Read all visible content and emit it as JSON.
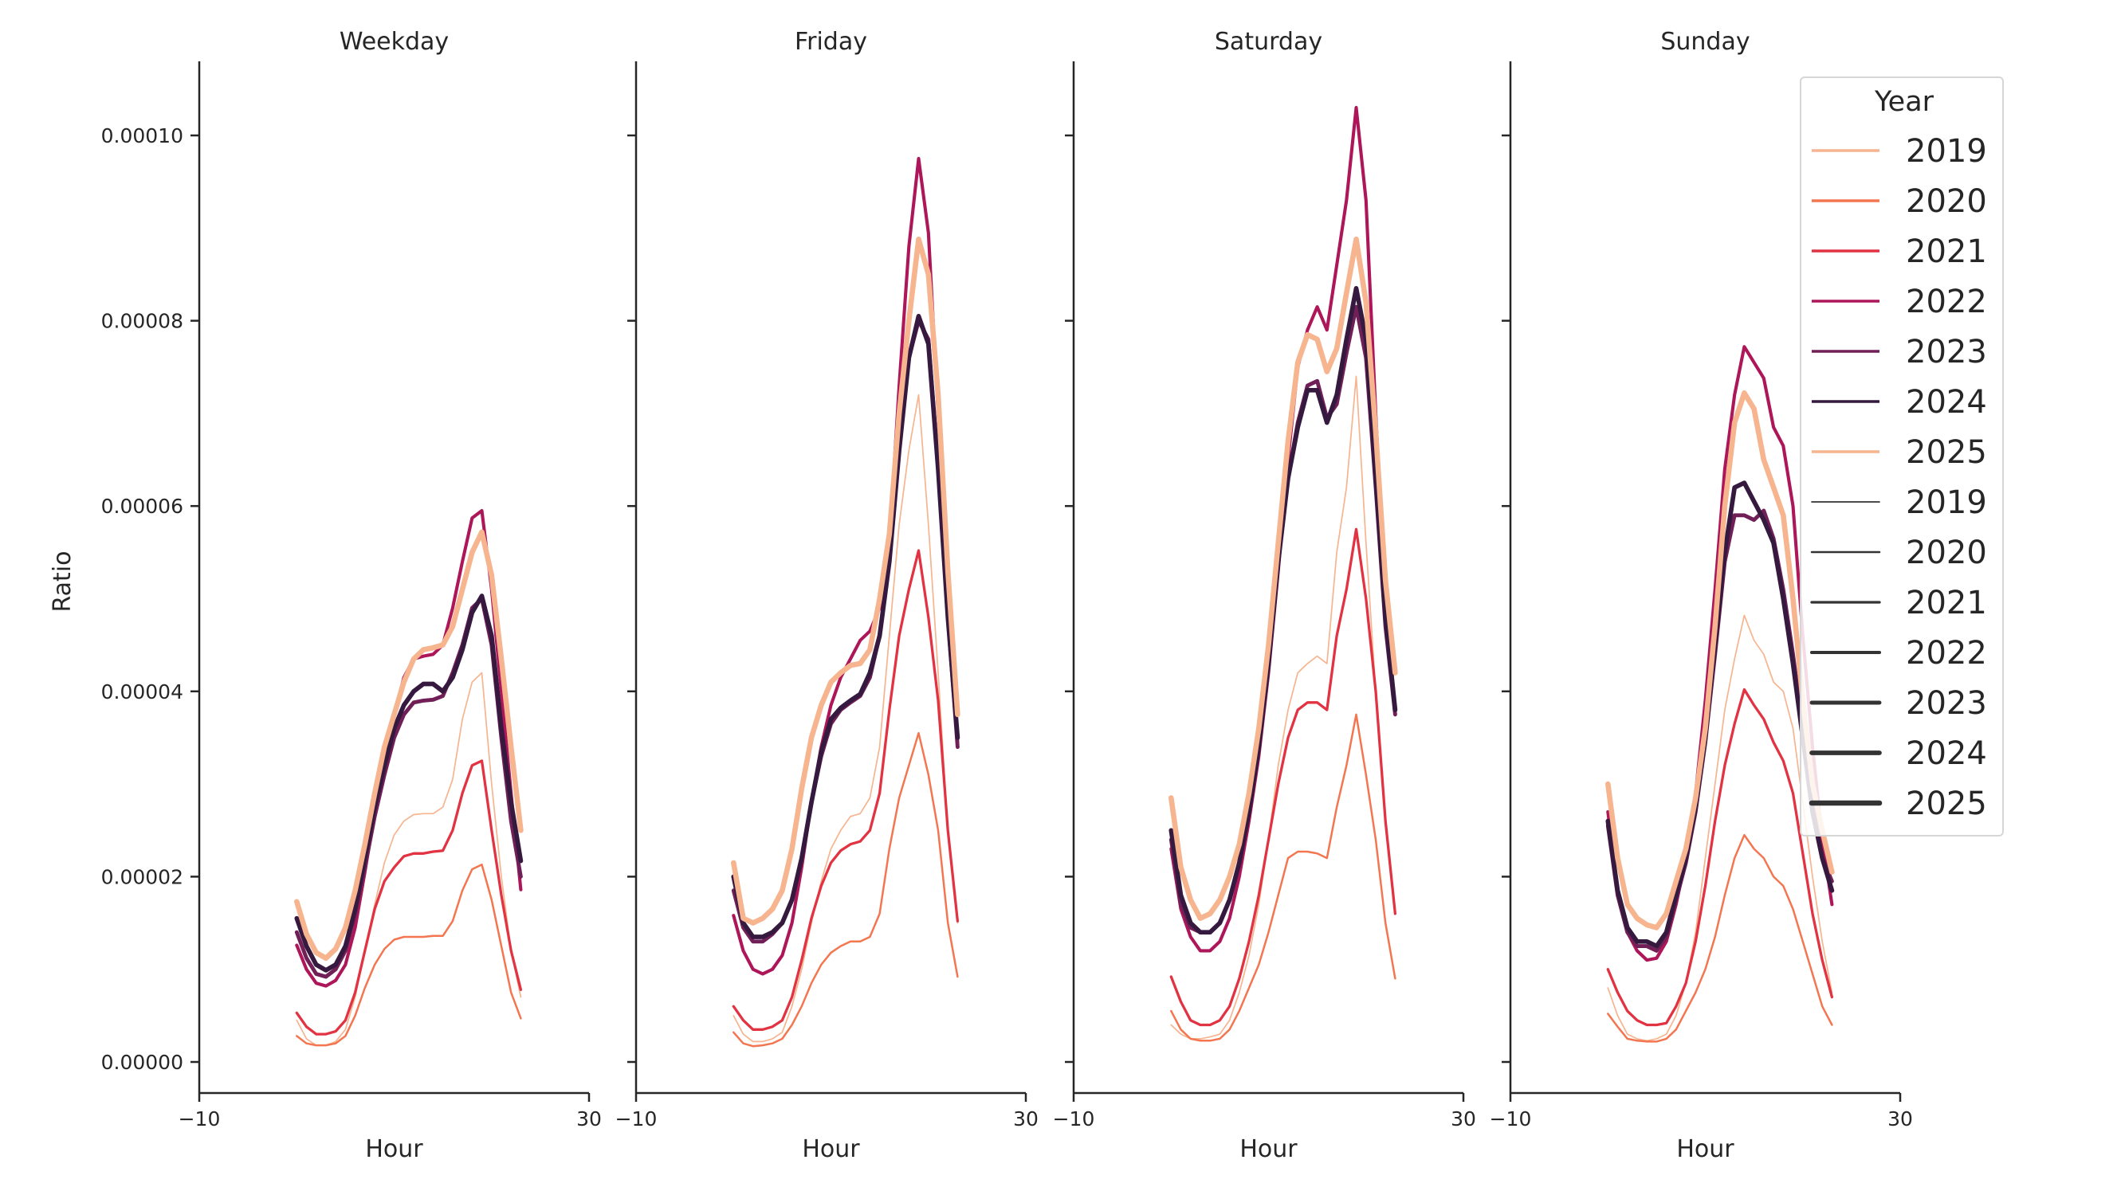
{
  "chart_data": {
    "type": "line",
    "value_scale": 1e-05,
    "ylabel": "Ratio",
    "xlabel": "Hour",
    "xlim": [
      -10,
      30
    ],
    "xticks": [
      "-10",
      "30"
    ],
    "x_tick_values": [
      -10,
      30
    ],
    "ylim": [
      -3.5e-06,
      0.000108
    ],
    "yticks": [
      "0.00000",
      "0.00002",
      "0.00004",
      "0.00006",
      "0.00008",
      "0.00010"
    ],
    "y_tick_values": [
      0,
      2e-05,
      4e-05,
      6e-05,
      8e-05,
      0.0001
    ],
    "grid": false,
    "x": [
      0,
      1,
      2,
      3,
      4,
      5,
      6,
      7,
      8,
      9,
      10,
      11,
      12,
      13,
      14,
      15,
      16,
      17,
      18,
      19,
      20,
      21,
      22,
      23
    ],
    "legend": {
      "title": "Year",
      "placement": "top-right",
      "color_entries": [
        "2019",
        "2020",
        "2021",
        "2022",
        "2023",
        "2024",
        "2025"
      ],
      "size_entries": [
        "2019",
        "2020",
        "2021",
        "2022",
        "2023",
        "2024",
        "2025"
      ]
    },
    "years": [
      "2019",
      "2020",
      "2021",
      "2022",
      "2023",
      "2024",
      "2025"
    ],
    "colors": {
      "2019": "#f6b48f",
      "2020": "#f37651",
      "2021": "#e13342",
      "2022": "#ad1759",
      "2023": "#701f57",
      "2024": "#35193e",
      "2025": "#f6b48f"
    },
    "size_color": "#333333",
    "panels": [
      {
        "title": "Weekday",
        "series": {
          "2019": [
            0.45,
            0.25,
            0.18,
            0.18,
            0.22,
            0.35,
            0.7,
            1.2,
            1.7,
            2.15,
            2.45,
            2.6,
            2.67,
            2.68,
            2.68,
            2.75,
            3.05,
            3.7,
            4.1,
            4.2,
            3.0,
            2.0,
            1.2,
            0.7
          ],
          "2020": [
            0.28,
            0.2,
            0.18,
            0.18,
            0.2,
            0.28,
            0.5,
            0.8,
            1.05,
            1.22,
            1.32,
            1.35,
            1.35,
            1.35,
            1.36,
            1.36,
            1.52,
            1.85,
            2.08,
            2.13,
            1.75,
            1.25,
            0.75,
            0.47
          ],
          "2021": [
            0.53,
            0.38,
            0.3,
            0.3,
            0.33,
            0.45,
            0.75,
            1.2,
            1.65,
            1.95,
            2.1,
            2.22,
            2.25,
            2.25,
            2.27,
            2.28,
            2.5,
            2.9,
            3.2,
            3.25,
            2.5,
            1.8,
            1.2,
            0.78
          ],
          "2022": [
            1.26,
            1.0,
            0.85,
            0.82,
            0.88,
            1.05,
            1.45,
            2.05,
            2.7,
            3.3,
            3.75,
            4.15,
            4.35,
            4.38,
            4.4,
            4.5,
            4.9,
            5.4,
            5.87,
            5.95,
            5.1,
            4.0,
            2.9,
            1.86
          ],
          "2023": [
            1.4,
            1.12,
            0.95,
            0.92,
            1.0,
            1.2,
            1.6,
            2.1,
            2.65,
            3.1,
            3.5,
            3.75,
            3.88,
            3.9,
            3.91,
            3.95,
            4.2,
            4.5,
            4.9,
            5.0,
            4.5,
            3.5,
            2.6,
            2.0
          ],
          "2024": [
            1.55,
            1.25,
            1.05,
            0.99,
            1.05,
            1.25,
            1.65,
            2.2,
            2.75,
            3.2,
            3.6,
            3.85,
            4.0,
            4.08,
            4.08,
            4.0,
            4.15,
            4.45,
            4.85,
            5.03,
            4.6,
            3.6,
            2.8,
            2.17
          ],
          "2025": [
            1.73,
            1.38,
            1.18,
            1.12,
            1.22,
            1.45,
            1.85,
            2.35,
            2.9,
            3.4,
            3.75,
            4.1,
            4.35,
            4.45,
            4.47,
            4.5,
            4.7,
            5.1,
            5.5,
            5.72,
            5.25,
            4.35,
            3.4,
            2.5
          ]
        }
      },
      {
        "title": "Friday",
        "series": {
          "2019": [
            0.5,
            0.3,
            0.22,
            0.22,
            0.25,
            0.32,
            0.6,
            1.0,
            1.5,
            1.95,
            2.3,
            2.5,
            2.65,
            2.68,
            2.85,
            3.4,
            4.6,
            5.8,
            6.6,
            7.2,
            5.8,
            4.2,
            2.5,
            1.5
          ],
          "2020": [
            0.32,
            0.2,
            0.17,
            0.18,
            0.2,
            0.25,
            0.4,
            0.6,
            0.85,
            1.05,
            1.18,
            1.25,
            1.3,
            1.3,
            1.35,
            1.6,
            2.3,
            2.85,
            3.2,
            3.55,
            3.1,
            2.5,
            1.5,
            0.92
          ],
          "2021": [
            0.6,
            0.45,
            0.35,
            0.35,
            0.38,
            0.45,
            0.7,
            1.1,
            1.55,
            1.9,
            2.15,
            2.28,
            2.35,
            2.38,
            2.5,
            2.9,
            3.8,
            4.6,
            5.1,
            5.52,
            4.8,
            3.9,
            2.5,
            1.52
          ],
          "2022": [
            1.58,
            1.2,
            1.0,
            0.95,
            1.0,
            1.15,
            1.5,
            2.1,
            2.8,
            3.4,
            3.85,
            4.15,
            4.35,
            4.55,
            4.65,
            4.9,
            5.6,
            7.3,
            8.8,
            9.75,
            8.95,
            7.0,
            5.0,
            3.45
          ],
          "2023": [
            1.85,
            1.45,
            1.3,
            1.3,
            1.38,
            1.5,
            1.75,
            2.2,
            2.8,
            3.3,
            3.65,
            3.8,
            3.88,
            3.95,
            4.15,
            4.6,
            5.4,
            6.6,
            7.6,
            8.0,
            7.8,
            6.4,
            4.8,
            3.4
          ],
          "2024": [
            2.0,
            1.5,
            1.35,
            1.35,
            1.4,
            1.5,
            1.75,
            2.2,
            2.8,
            3.35,
            3.7,
            3.82,
            3.9,
            3.97,
            4.2,
            4.6,
            5.4,
            6.6,
            7.6,
            8.05,
            7.75,
            6.4,
            4.8,
            3.5
          ],
          "2025": [
            2.15,
            1.55,
            1.5,
            1.55,
            1.65,
            1.85,
            2.3,
            2.95,
            3.5,
            3.85,
            4.1,
            4.2,
            4.28,
            4.3,
            4.45,
            5.0,
            5.7,
            7.0,
            8.0,
            8.88,
            8.5,
            7.2,
            5.3,
            3.75
          ]
        }
      },
      {
        "title": "Saturday",
        "series": {
          "2019": [
            0.4,
            0.3,
            0.25,
            0.25,
            0.27,
            0.3,
            0.45,
            0.75,
            1.15,
            1.7,
            2.4,
            3.2,
            3.8,
            4.2,
            4.3,
            4.38,
            4.3,
            5.5,
            6.2,
            7.4,
            5.6,
            4.0,
            2.6,
            1.6
          ],
          "2020": [
            0.55,
            0.35,
            0.25,
            0.23,
            0.23,
            0.25,
            0.35,
            0.55,
            0.8,
            1.05,
            1.4,
            1.8,
            2.2,
            2.27,
            2.27,
            2.25,
            2.2,
            2.75,
            3.2,
            3.75,
            3.1,
            2.4,
            1.5,
            0.9
          ],
          "2021": [
            0.92,
            0.65,
            0.45,
            0.4,
            0.4,
            0.45,
            0.6,
            0.9,
            1.3,
            1.8,
            2.4,
            3.0,
            3.5,
            3.8,
            3.88,
            3.88,
            3.8,
            4.6,
            5.1,
            5.75,
            5.0,
            4.0,
            2.6,
            1.6
          ],
          "2022": [
            2.3,
            1.65,
            1.35,
            1.2,
            1.2,
            1.3,
            1.55,
            2.0,
            2.6,
            3.3,
            4.2,
            5.3,
            6.5,
            7.5,
            7.9,
            8.15,
            7.9,
            8.6,
            9.3,
            10.3,
            9.3,
            7.0,
            5.0,
            3.8
          ],
          "2023": [
            2.4,
            1.7,
            1.45,
            1.4,
            1.4,
            1.5,
            1.75,
            2.15,
            2.7,
            3.4,
            4.3,
            5.4,
            6.3,
            6.9,
            7.3,
            7.35,
            6.95,
            7.1,
            7.65,
            8.15,
            7.6,
            6.2,
            4.7,
            3.75
          ],
          "2024": [
            2.5,
            1.8,
            1.5,
            1.4,
            1.4,
            1.5,
            1.75,
            2.15,
            2.7,
            3.4,
            4.3,
            5.4,
            6.3,
            6.85,
            7.25,
            7.25,
            6.9,
            7.2,
            7.8,
            8.35,
            7.8,
            6.3,
            4.8,
            3.8
          ],
          "2025": [
            2.85,
            2.1,
            1.75,
            1.55,
            1.6,
            1.75,
            2.0,
            2.35,
            2.9,
            3.6,
            4.5,
            5.6,
            6.7,
            7.55,
            7.85,
            7.8,
            7.45,
            7.7,
            8.3,
            8.88,
            8.2,
            6.8,
            5.2,
            4.2
          ]
        }
      },
      {
        "title": "Sunday",
        "series": {
          "2019": [
            0.8,
            0.5,
            0.3,
            0.25,
            0.23,
            0.25,
            0.3,
            0.5,
            0.85,
            1.4,
            2.2,
            3.0,
            3.8,
            4.35,
            4.82,
            4.55,
            4.4,
            4.1,
            4.0,
            3.6,
            2.8,
            2.0,
            1.3,
            0.75
          ],
          "2020": [
            0.52,
            0.38,
            0.25,
            0.23,
            0.22,
            0.22,
            0.25,
            0.35,
            0.55,
            0.75,
            1.0,
            1.35,
            1.8,
            2.2,
            2.45,
            2.3,
            2.2,
            2.0,
            1.9,
            1.65,
            1.3,
            0.95,
            0.6,
            0.4
          ],
          "2021": [
            1.0,
            0.75,
            0.55,
            0.45,
            0.4,
            0.4,
            0.42,
            0.6,
            0.85,
            1.3,
            1.9,
            2.6,
            3.2,
            3.65,
            4.02,
            3.85,
            3.7,
            3.45,
            3.25,
            2.9,
            2.25,
            1.6,
            1.1,
            0.7
          ],
          "2022": [
            2.7,
            1.85,
            1.4,
            1.2,
            1.1,
            1.12,
            1.3,
            1.7,
            2.2,
            2.9,
            3.9,
            5.1,
            6.4,
            7.2,
            7.72,
            7.55,
            7.38,
            6.85,
            6.65,
            6.0,
            4.6,
            3.4,
            2.4,
            1.7
          ],
          "2023": [
            2.55,
            1.8,
            1.4,
            1.25,
            1.25,
            1.2,
            1.35,
            1.75,
            2.15,
            2.7,
            3.45,
            4.4,
            5.4,
            5.9,
            5.9,
            5.85,
            5.95,
            5.65,
            5.1,
            4.4,
            3.6,
            2.8,
            2.2,
            1.95
          ],
          "2024": [
            2.6,
            1.85,
            1.45,
            1.3,
            1.3,
            1.25,
            1.4,
            1.8,
            2.2,
            2.75,
            3.5,
            4.5,
            5.5,
            6.2,
            6.25,
            6.05,
            5.85,
            5.6,
            5.0,
            4.3,
            3.5,
            2.7,
            2.2,
            1.85
          ],
          "2025": [
            3.0,
            2.2,
            1.7,
            1.55,
            1.48,
            1.45,
            1.6,
            1.95,
            2.3,
            2.85,
            3.6,
            4.7,
            6.0,
            6.9,
            7.22,
            7.05,
            6.5,
            6.2,
            5.9,
            5.0,
            3.9,
            3.0,
            2.5,
            2.05
          ]
        }
      }
    ]
  }
}
